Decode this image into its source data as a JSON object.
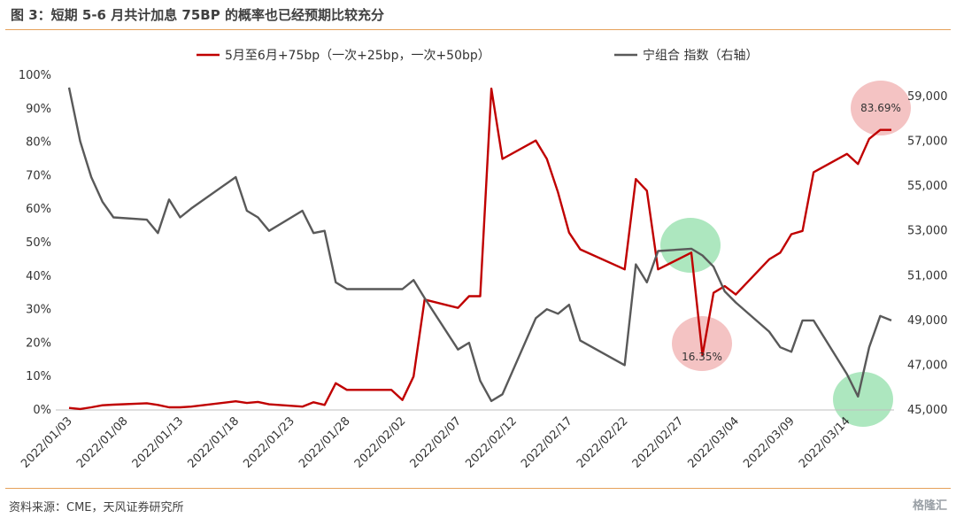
{
  "title": "图 3：短期 5-6 月共计加息 75BP 的概率也已经预期比较充分",
  "source": "资料来源：CME，天风证券研究所",
  "watermark": "格隆汇",
  "chart_data": {
    "type": "line",
    "x": [
      "2022/01/03",
      "2022/01/04",
      "2022/01/05",
      "2022/01/06",
      "2022/01/07",
      "2022/01/10",
      "2022/01/11",
      "2022/01/12",
      "2022/01/13",
      "2022/01/14",
      "2022/01/18",
      "2022/01/19",
      "2022/01/20",
      "2022/01/21",
      "2022/01/24",
      "2022/01/25",
      "2022/01/26",
      "2022/01/27",
      "2022/01/28",
      "2022/02/01",
      "2022/02/02",
      "2022/02/03",
      "2022/02/04",
      "2022/02/07",
      "2022/02/08",
      "2022/02/09",
      "2022/02/10",
      "2022/02/11",
      "2022/02/14",
      "2022/02/15",
      "2022/02/16",
      "2022/02/17",
      "2022/02/18",
      "2022/02/22",
      "2022/02/23",
      "2022/02/24",
      "2022/02/25",
      "2022/02/28",
      "2022/03/01",
      "2022/03/02",
      "2022/03/03",
      "2022/03/04",
      "2022/03/07",
      "2022/03/08",
      "2022/03/09",
      "2022/03/10",
      "2022/03/11",
      "2022/03/14",
      "2022/03/15",
      "2022/03/16",
      "2022/03/17",
      "2022/03/18"
    ],
    "x_tick_labels": [
      "2022/01/03",
      "2022/01/08",
      "2022/01/13",
      "2022/01/18",
      "2022/01/23",
      "2022/01/28",
      "2022/02/02",
      "2022/02/07",
      "2022/02/12",
      "2022/02/17",
      "2022/02/22",
      "2022/02/27",
      "2022/03/04",
      "2022/03/09",
      "2022/03/14"
    ],
    "series": [
      {
        "name": "5月至6月+75bp（一次+25bp，一次+50bp）",
        "color": "#c00000",
        "axis": "left",
        "values": [
          0.6,
          0.3,
          0.8,
          1.4,
          1.6,
          2.0,
          1.5,
          0.8,
          0.8,
          1.0,
          2.6,
          2.1,
          2.4,
          1.7,
          1.0,
          2.3,
          1.5,
          8.0,
          6.0,
          6.0,
          3.0,
          10.0,
          33.0,
          30.5,
          34.0,
          34.0,
          96.0,
          75.0,
          80.5,
          75.0,
          65.0,
          53.0,
          48.0,
          42.0,
          69.0,
          65.5,
          42.0,
          47.0,
          16.35,
          35.0,
          37.0,
          34.5,
          45.0,
          47.0,
          52.5,
          53.5,
          71.0,
          76.5,
          73.5,
          81.0,
          83.69,
          83.69
        ]
      },
      {
        "name": "宁组合 指数（右轴）",
        "color": "#595959",
        "axis": "right",
        "values": [
          59400,
          57000,
          55400,
          54300,
          53600,
          53500,
          52900,
          54400,
          53600,
          54000,
          55400,
          53900,
          53600,
          53000,
          53900,
          52900,
          53000,
          50700,
          50400,
          50400,
          50400,
          50800,
          50000,
          47700,
          48000,
          46300,
          45400,
          45700,
          49100,
          49500,
          49300,
          49700,
          48100,
          47000,
          51500,
          50700,
          52100,
          52200,
          51900,
          51400,
          50300,
          49800,
          48500,
          47800,
          47600,
          49000,
          49000,
          46600,
          45600,
          47800,
          49200,
          49000
        ]
      }
    ],
    "y_left": {
      "ticks": [
        "0%",
        "10%",
        "20%",
        "30%",
        "40%",
        "50%",
        "60%",
        "70%",
        "80%",
        "90%",
        "100%"
      ],
      "min": 0,
      "max": 100
    },
    "y_right": {
      "ticks": [
        "45,000",
        "47,000",
        "49,000",
        "51,000",
        "53,000",
        "55,000",
        "57,000",
        "59,000"
      ],
      "min": 45000,
      "max": 59000
    },
    "annotations": [
      {
        "label": "83.69%",
        "x": "2022/03/18",
        "y": 83.69,
        "axis": "left",
        "color": "#f2b8b8"
      },
      {
        "label": "16.35%",
        "x": "2022/03/01",
        "y": 16.35,
        "axis": "left",
        "color": "#f2b8b8"
      },
      {
        "label": "",
        "x": "2022/02/28",
        "y": 52200,
        "axis": "right",
        "color": "#9fe3b4"
      },
      {
        "label": "",
        "x": "2022/03/15",
        "y": 45600,
        "axis": "right",
        "color": "#9fe3b4"
      }
    ],
    "legend_position": "top"
  }
}
